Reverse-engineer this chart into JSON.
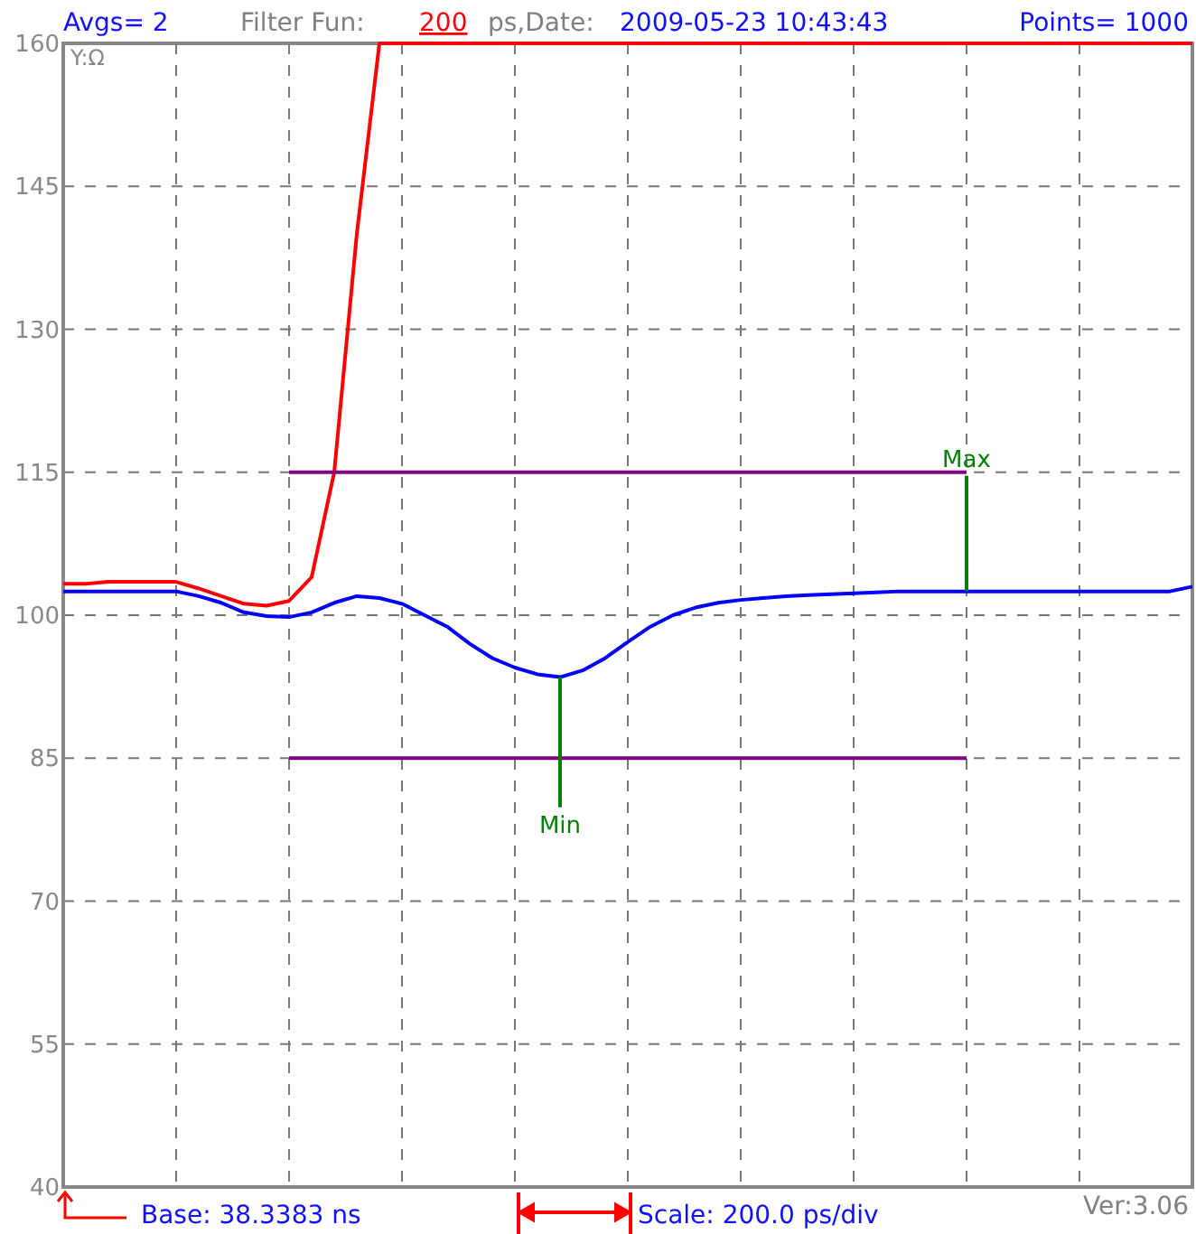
{
  "chart_data": {
    "type": "line",
    "ylabel": "Y:Ω",
    "ylim": [
      40,
      160
    ],
    "categories": [
      null,
      null,
      null,
      null,
      null,
      null,
      null,
      null,
      null,
      null,
      null,
      null,
      null,
      null,
      null,
      null,
      null,
      null,
      null,
      null,
      null,
      null,
      null,
      null,
      null,
      null,
      null,
      null,
      null,
      null,
      null,
      null,
      null,
      null,
      null,
      null,
      null,
      null,
      null,
      null,
      null,
      null,
      null,
      null,
      null,
      null,
      null,
      null,
      null,
      null,
      null
    ],
    "yticks": [
      40,
      55,
      70,
      85,
      100,
      115,
      130,
      145,
      160
    ],
    "grid": true,
    "line_style": "solid",
    "marker": "none",
    "series": [
      {
        "color": "#ff0000",
        "values": [
          103.3,
          103.3,
          103.5,
          103.5,
          103.5,
          103.5,
          102.8,
          102,
          101.2,
          101,
          101.5,
          104,
          115,
          140,
          160,
          160,
          160,
          160,
          160,
          160,
          160,
          160,
          160,
          160,
          160,
          160,
          160,
          160,
          160,
          160,
          160,
          160,
          160,
          160,
          160,
          160,
          160,
          160,
          160,
          160,
          160,
          160,
          160,
          160,
          160,
          160,
          160,
          160,
          160,
          160,
          160
        ]
      },
      {
        "color": "#0000ff",
        "values": [
          102.5,
          102.5,
          102.5,
          102.5,
          102.5,
          102.5,
          102,
          101.3,
          100.3,
          99.9,
          99.8,
          100.3,
          101.3,
          102,
          101.8,
          101.2,
          100,
          98.8,
          97,
          95.5,
          94.5,
          93.8,
          93.5,
          94.2,
          95.5,
          97.2,
          98.8,
          100,
          100.8,
          101.3,
          101.6,
          101.8,
          102,
          102.1,
          102.2,
          102.3,
          102.4,
          102.5,
          102.5,
          102.5,
          102.5,
          102.5,
          102.5,
          102.5,
          102.5,
          102.5,
          102.5,
          102.5,
          102.5,
          102.5,
          103
        ]
      },
      {
        "color": "#800080",
        "values": [
          null,
          null,
          null,
          null,
          null,
          null,
          null,
          null,
          null,
          null,
          115,
          115,
          115,
          115,
          115,
          115,
          115,
          115,
          115,
          115,
          115,
          115,
          115,
          115,
          115,
          115,
          115,
          115,
          115,
          115,
          115,
          115,
          115,
          115,
          115,
          115,
          115,
          115,
          115,
          115,
          115,
          null,
          null,
          null,
          null,
          null,
          null,
          null,
          null,
          null,
          null
        ]
      },
      {
        "color": "#800080",
        "values": [
          null,
          null,
          null,
          null,
          null,
          null,
          null,
          null,
          null,
          null,
          85,
          85,
          85,
          85,
          85,
          85,
          85,
          85,
          85,
          85,
          85,
          85,
          85,
          85,
          85,
          85,
          85,
          85,
          85,
          85,
          85,
          85,
          85,
          85,
          85,
          85,
          85,
          85,
          85,
          85,
          85,
          null,
          null,
          null,
          null,
          null,
          null,
          null,
          null,
          null,
          null
        ]
      }
    ],
    "annotations": [
      "Avgs= 2",
      "Filter Fun:",
      "200",
      "ps,Date:",
      "2009-05-23 10:43:43",
      "Points= 1000",
      "Base: 38.3383 ns",
      "Scale: 200.0 ps/div",
      "Ver:3.06",
      "Min",
      "Max"
    ]
  }
}
